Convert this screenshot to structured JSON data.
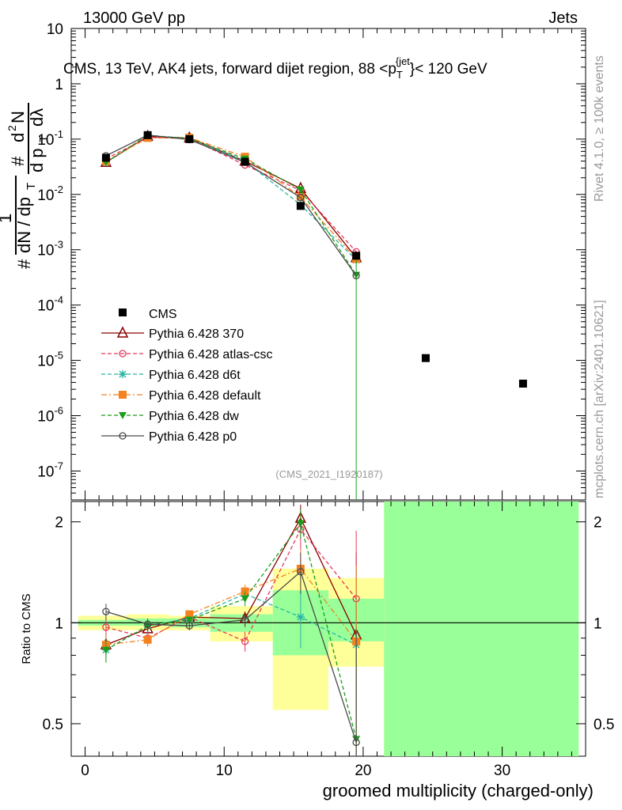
{
  "header": {
    "left_label": "13000 GeV pp",
    "right_label": "Jets"
  },
  "watermarks": {
    "rivet": "Rivet 4.1.0, ≥ 100k events",
    "mcplots": "mcplots.cern.ch [arXiv:2401.10621]"
  },
  "chart_data": [
    {
      "type": "line",
      "panel": "main",
      "title": "CMS, 13 TeV, AK4 jets, forward dijet region, 88 <p_T^{jet}< 120 GeV",
      "analysis_label": "(CMS_2021_I1920187)",
      "ylabel": "1/(dN/dp_T) d²N/(dp_T dλ)",
      "yscale": "log",
      "ylim": [
        3e-08,
        10
      ],
      "xlim": [
        -1,
        36
      ],
      "x": [
        1.5,
        4.5,
        7.5,
        11.5,
        15.5,
        19.5
      ],
      "ytick_labels": [
        "10",
        "1",
        "10^-1",
        "10^-2",
        "10^-3",
        "10^-4",
        "10^-5",
        "10^-6",
        "10^-7"
      ],
      "legend_position": "middle-left",
      "data": {
        "name": "CMS",
        "x": [
          1.5,
          4.5,
          7.5,
          11.5,
          15.5,
          19.5,
          24.5,
          31.5
        ],
        "y": [
          0.046,
          0.118,
          0.1,
          0.039,
          0.0062,
          0.00078,
          1.1e-05,
          3.8e-06
        ]
      },
      "series": [
        {
          "name": "Pythia 6.428 370",
          "color": "#8b0000",
          "marker": "triangle-open",
          "dash": "solid",
          "values": [
            0.038,
            0.112,
            0.105,
            0.04,
            0.0128,
            0.00072
          ]
        },
        {
          "name": "Pythia 6.428 atlas-csc",
          "color": "#e8365a",
          "marker": "circle-open",
          "dash": "dashed",
          "values": [
            0.044,
            0.107,
            0.103,
            0.034,
            0.0118,
            0.00092
          ]
        },
        {
          "name": "Pythia 6.428 d6t",
          "color": "#27b5a2",
          "marker": "star",
          "dash": "dashed",
          "values": [
            0.038,
            0.117,
            0.103,
            0.04,
            0.0065,
            0.00065
          ]
        },
        {
          "name": "Pythia 6.428 default",
          "color": "#f58220",
          "marker": "square",
          "dash": "dashdot",
          "values": [
            0.04,
            0.105,
            0.106,
            0.048,
            0.009,
            0.00068
          ]
        },
        {
          "name": "Pythia 6.428 dw",
          "color": "#1a9e1a",
          "marker": "triangle-down",
          "dash": "dashed",
          "values": [
            0.038,
            0.117,
            0.102,
            0.044,
            0.0122,
            0.00035
          ]
        },
        {
          "name": "Pythia 6.428 p0",
          "color": "#4a4a4a",
          "marker": "circle-open",
          "dash": "solid",
          "values": [
            0.05,
            0.118,
            0.098,
            0.038,
            0.0088,
            0.00034
          ]
        }
      ]
    },
    {
      "type": "line",
      "panel": "ratio",
      "ylabel": "Ratio to CMS",
      "xlabel": "groomed multiplicity (charged-only)",
      "yscale": "log",
      "ylim": [
        0.4,
        2.3
      ],
      "xlim": [
        -1,
        36
      ],
      "x": [
        1.5,
        4.5,
        7.5,
        11.5,
        15.5,
        19.5
      ],
      "xticks": [
        0,
        10,
        20,
        30
      ],
      "yticks": [
        0.5,
        1,
        2
      ],
      "reference_line": 1,
      "uncertainty_bands": [
        {
          "x0": -0.5,
          "x1": 3,
          "green": [
            0.98,
            1.02
          ],
          "yellow": [
            0.95,
            1.05
          ]
        },
        {
          "x0": 3,
          "x1": 6,
          "green": [
            0.98,
            1.03
          ],
          "yellow": [
            0.95,
            1.06
          ]
        },
        {
          "x0": 6,
          "x1": 9,
          "green": [
            0.97,
            1.03
          ],
          "yellow": [
            0.95,
            1.05
          ]
        },
        {
          "x0": 9,
          "x1": 13.5,
          "green": [
            0.94,
            1.06
          ],
          "yellow": [
            0.88,
            1.12
          ]
        },
        {
          "x0": 13.5,
          "x1": 17.5,
          "green": [
            0.8,
            1.25
          ],
          "yellow": [
            0.55,
            1.45
          ]
        },
        {
          "x0": 17.5,
          "x1": 21.5,
          "green": [
            0.88,
            1.18
          ],
          "yellow": [
            0.74,
            1.36
          ]
        },
        {
          "x0": 21.5,
          "x1": 35.5,
          "green": [
            0.4,
            2.3
          ],
          "yellow": [
            0.4,
            2.3
          ]
        }
      ],
      "series": [
        {
          "name": "Pythia 6.428 370",
          "values": [
            0.86,
            0.96,
            1.04,
            1.03,
            2.05,
            0.92
          ],
          "errors": [
            0.06,
            0.04,
            0.03,
            0.05,
            0.2,
            0.7
          ]
        },
        {
          "name": "Pythia 6.428 atlas-csc",
          "values": [
            0.97,
            0.9,
            1.04,
            0.88,
            1.9,
            1.18
          ],
          "errors": [
            0.06,
            0.05,
            0.03,
            0.06,
            0.25,
            0.7
          ]
        },
        {
          "name": "Pythia 6.428 d6t",
          "values": [
            0.83,
            0.98,
            1.03,
            1.22,
            1.04,
            0.86
          ],
          "errors": [
            0.06,
            0.04,
            0.03,
            0.06,
            0.2,
            0.6
          ]
        },
        {
          "name": "Pythia 6.428 default",
          "values": [
            0.86,
            0.89,
            1.06,
            1.24,
            1.45,
            0.88
          ],
          "errors": [
            0.06,
            0.04,
            0.03,
            0.06,
            0.2,
            0.6
          ]
        },
        {
          "name": "Pythia 6.428 dw",
          "values": [
            0.83,
            0.98,
            1.02,
            1.18,
            1.98,
            0.45
          ],
          "errors": [
            0.07,
            0.04,
            0.03,
            0.06,
            0.2,
            0.5
          ]
        },
        {
          "name": "Pythia 6.428 p0",
          "values": [
            1.08,
            0.99,
            0.98,
            1.02,
            1.42,
            0.44
          ],
          "errors": [
            0.06,
            0.04,
            0.03,
            0.05,
            0.2,
            0.5
          ]
        }
      ]
    }
  ]
}
